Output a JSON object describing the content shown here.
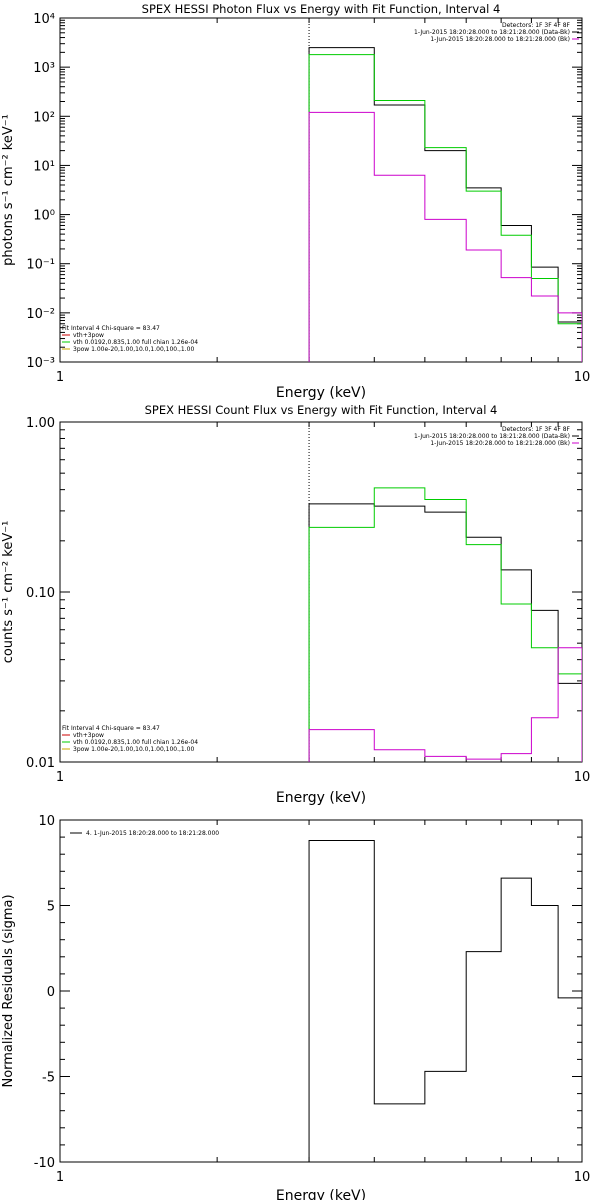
{
  "chart_data": [
    {
      "type": "line",
      "title": "SPEX HESSI Photon Flux vs Energy with Fit Function, Interval 4",
      "xlabel": "Energy (keV)",
      "ylabel": "photons s⁻¹ cm⁻² keV⁻¹",
      "xscale": "log",
      "yscale": "log",
      "xlim": [
        1,
        10
      ],
      "ylim": [
        0.001,
        10000
      ],
      "x_tick_labels": [
        "1",
        "10"
      ],
      "y_tick_labels": [
        "10⁻³",
        "10⁻²",
        "10⁻¹",
        "10⁰",
        "10¹",
        "10²",
        "10³",
        "10⁴"
      ],
      "vline_x": 3.0,
      "legend_top": [
        "Detectors: 1F 3F 4F 8F",
        "1-Jun-2015 18:20:28.000 to 18:21:28.000 (Data-Bk)",
        "1-Jun-2015 18:20:28.000 to 18:21:28.000 (Bk)"
      ],
      "legend_bottom": [
        "Fit Interval  4    Chi-square = 83.47",
        "vth+3pow",
        "vth 0.0192,0.835,1.00  full chian 1.26e-04",
        "3pow 1.00e-20,1.00,10.0,1.00,100.,1.00"
      ],
      "bin_edges": [
        3,
        4,
        5,
        6,
        7,
        8,
        9,
        10
      ],
      "series": [
        {
          "name": "1-Jun-2015 18:20:28.000 to 18:21:28.000 (Data-Bk)",
          "color": "#000000",
          "values": [
            2500,
            170,
            20,
            3.5,
            0.6,
            0.085,
            0.0065
          ]
        },
        {
          "name": "vth+3pow",
          "color": "#00cc00",
          "values": [
            1800,
            210,
            23,
            3.0,
            0.38,
            0.05,
            0.006
          ]
        },
        {
          "name": "1-Jun-2015 18:20:28.000 to 18:21:28.000 (Bk)",
          "color": "#cc00cc",
          "values": [
            120,
            6.3,
            0.8,
            0.19,
            0.052,
            0.022,
            0.01
          ]
        }
      ]
    },
    {
      "type": "line",
      "title": "SPEX HESSI Count Flux vs Energy with Fit Function, Interval 4",
      "xlabel": "Energy (keV)",
      "ylabel": "counts s⁻¹ cm⁻² keV⁻¹",
      "xscale": "log",
      "yscale": "log",
      "xlim": [
        1,
        10
      ],
      "ylim": [
        0.01,
        1.0
      ],
      "x_tick_labels": [
        "1",
        "10"
      ],
      "y_tick_labels": [
        "0.01",
        "0.10",
        "1.00"
      ],
      "vline_x": 3.0,
      "legend_top": [
        "Detectors: 1F 3F 4F 8F",
        "1-Jun-2015 18:20:28.000 to 18:21:28.000 (Data-Bk)",
        "1-Jun-2015 18:20:28.000 to 18:21:28.000 (Bk)"
      ],
      "legend_bottom": [
        "Fit Interval  4    Chi-square = 83.47",
        "vth+3pow",
        "vth 0.0192,0.835,1.00  full chian 1.26e-04",
        "3pow 1.00e-20,1.00,10.0,1.00,100.,1.00"
      ],
      "bin_edges": [
        3,
        4,
        5,
        6,
        7,
        8,
        9,
        10
      ],
      "series": [
        {
          "name": "1-Jun-2015 18:20:28.000 to 18:21:28.000 (Data-Bk)",
          "color": "#000000",
          "values": [
            0.33,
            0.32,
            0.295,
            0.21,
            0.135,
            0.078,
            0.029
          ]
        },
        {
          "name": "vth+3pow",
          "color": "#00cc00",
          "values": [
            0.24,
            0.41,
            0.35,
            0.19,
            0.085,
            0.047,
            0.033
          ]
        },
        {
          "name": "1-Jun-2015 18:20:28.000 to 18:21:28.000 (Bk)",
          "color": "#cc00cc",
          "values": [
            0.0155,
            0.0118,
            0.0108,
            0.0104,
            0.0112,
            0.0182,
            0.047
          ]
        }
      ]
    },
    {
      "type": "line",
      "title": "",
      "xlabel": "Energy (keV)",
      "ylabel": "Normalized Residuals (sigma)",
      "xscale": "log",
      "yscale": "linear",
      "xlim": [
        1,
        10
      ],
      "ylim": [
        -10,
        10
      ],
      "x_tick_labels": [
        "1",
        "10"
      ],
      "y_tick_labels": [
        "-10",
        "-5",
        "0",
        "5",
        "10"
      ],
      "legend_top": [
        "4.  1-Jun-2015 18:20:28.000 to 18:21:28.000"
      ],
      "bin_edges": [
        3,
        4,
        5,
        6,
        7,
        8,
        9,
        10
      ],
      "series": [
        {
          "name": "4.  1-Jun-2015 18:20:28.000 to 18:21:28.000",
          "color": "#000000",
          "values": [
            8.8,
            -6.6,
            -4.7,
            2.3,
            6.6,
            5.0,
            -0.4
          ]
        }
      ]
    }
  ]
}
